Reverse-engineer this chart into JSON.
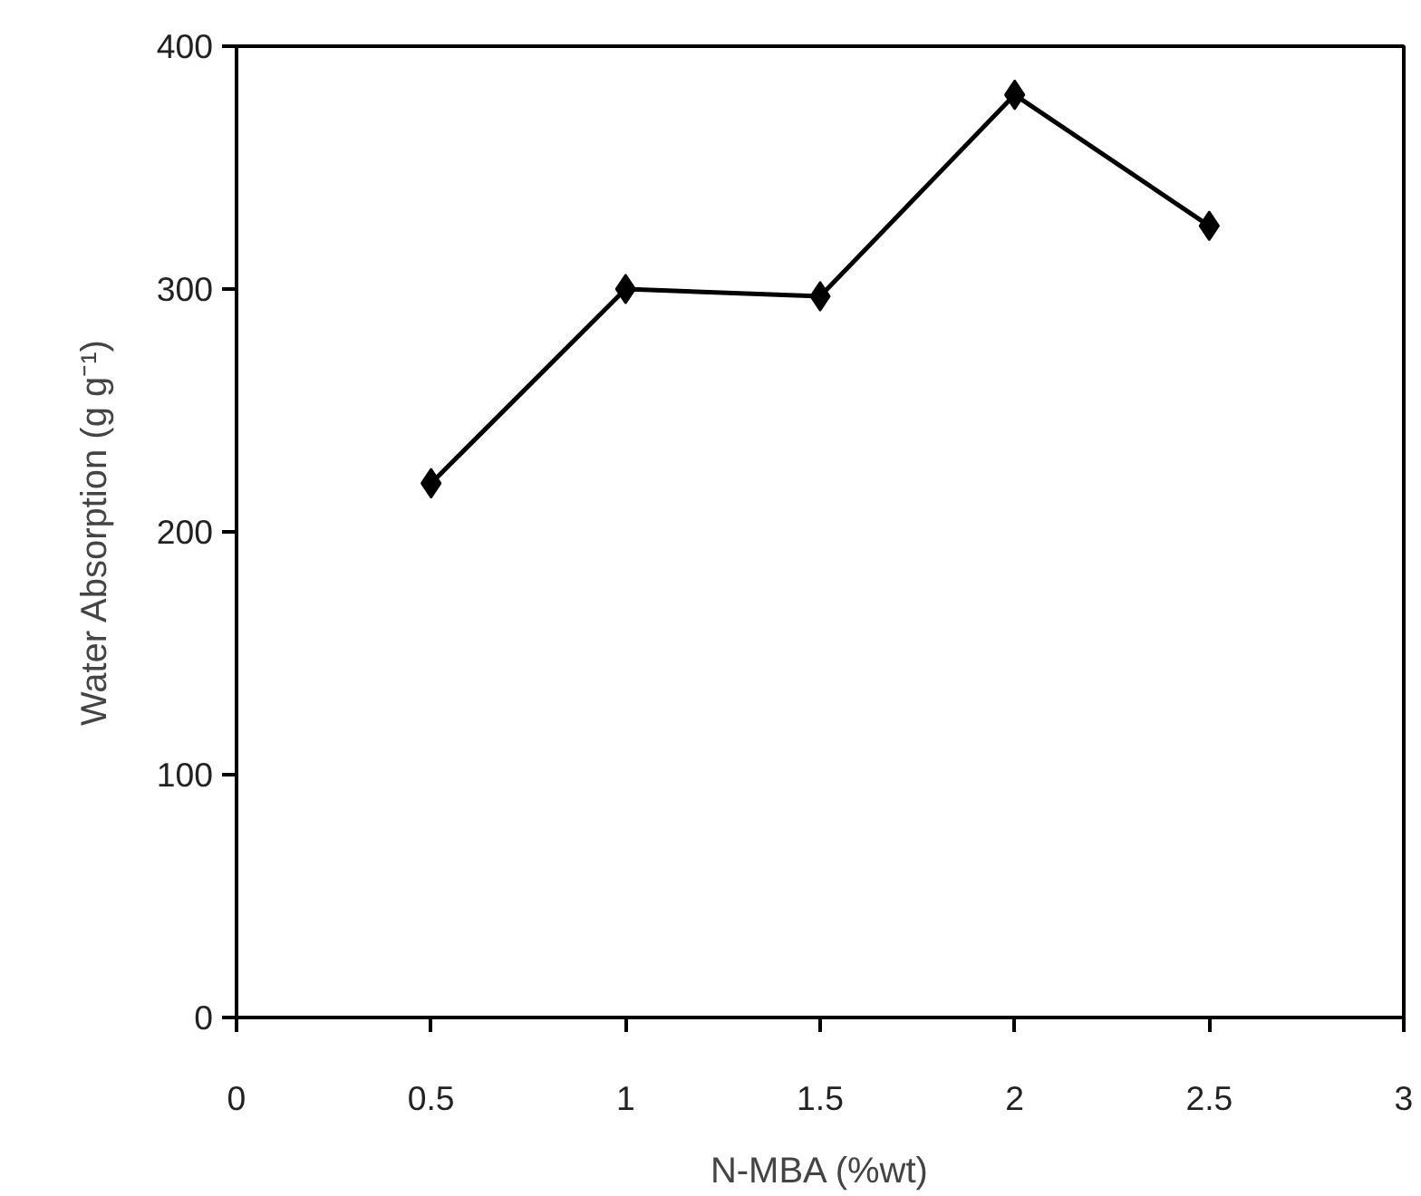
{
  "chart_data": {
    "type": "line",
    "xlabel": "N-MBA (%wt)",
    "ylabel": "Water Absorption (g g⁻¹)",
    "x": [
      0.5,
      1,
      1.5,
      2,
      2.5
    ],
    "series": [
      {
        "color": "#000000",
        "values": [
          220,
          300,
          297,
          380,
          326
        ]
      }
    ],
    "xlim": [
      0,
      3
    ],
    "xticks": [
      0,
      0.5,
      1,
      1.5,
      2,
      2.5,
      3
    ],
    "ylim": [
      0,
      400
    ],
    "yticks": [
      0,
      100,
      200,
      300,
      400
    ],
    "marker": "diamond",
    "line_style": "solid",
    "grid": false
  }
}
